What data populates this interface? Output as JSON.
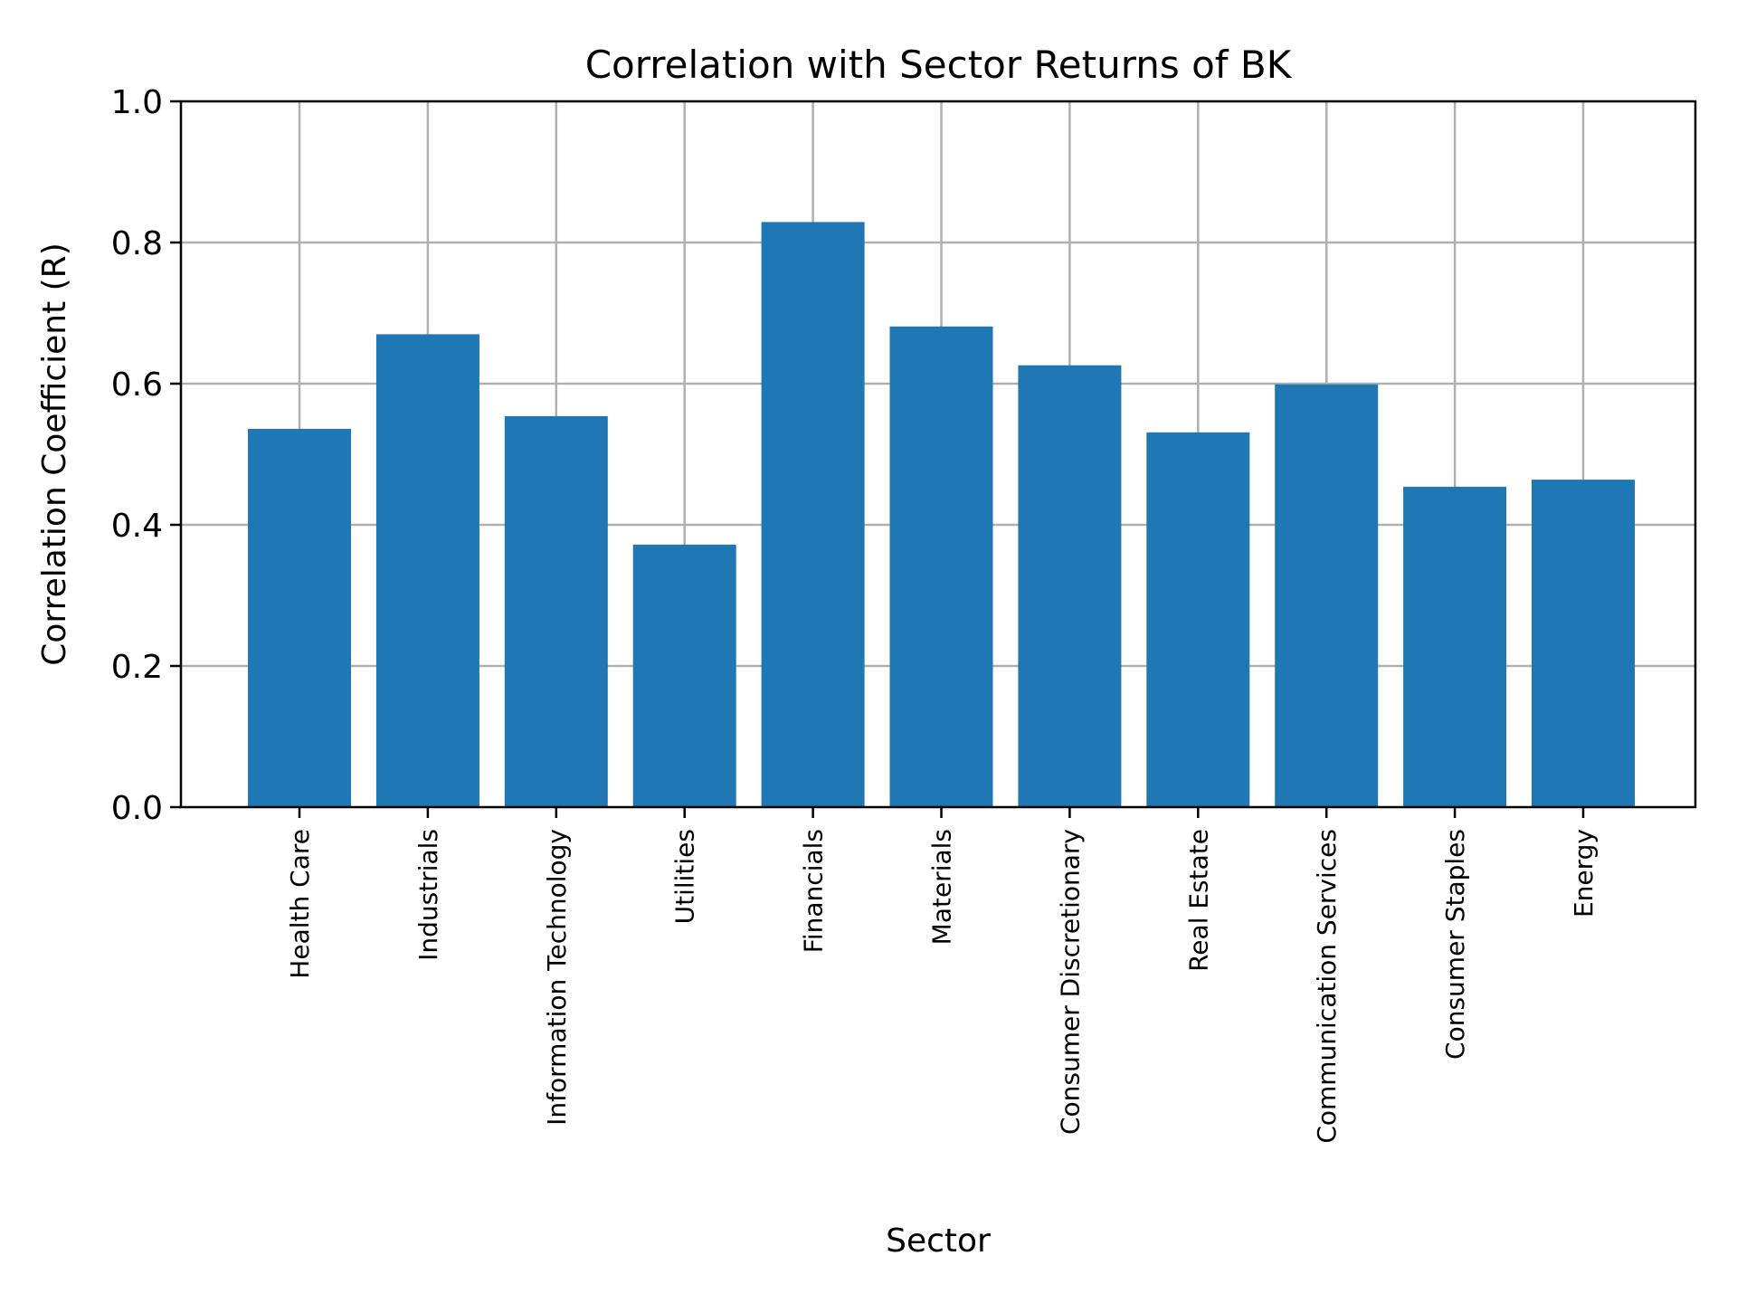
{
  "chart_data": {
    "type": "bar",
    "title": "Correlation with Sector Returns of BK",
    "xlabel": "Sector",
    "ylabel": "Correlation Coefficient (R)",
    "ylim": [
      0.0,
      1.0
    ],
    "yticks": [
      "0.0",
      "0.2",
      "0.4",
      "0.6",
      "0.8",
      "1.0"
    ],
    "grid": true,
    "legend": null,
    "bar_color": "#1f77b4",
    "grid_color": "#b0b0b0",
    "categories": [
      "Health Care",
      "Industrials",
      "Information Technology",
      "Utilities",
      "Financials",
      "Materials",
      "Consumer Discretionary",
      "Real Estate",
      "Communication Services",
      "Consumer Staples",
      "Energy"
    ],
    "values": [
      0.536,
      0.67,
      0.554,
      0.372,
      0.829,
      0.681,
      0.626,
      0.531,
      0.599,
      0.454,
      0.464
    ]
  }
}
